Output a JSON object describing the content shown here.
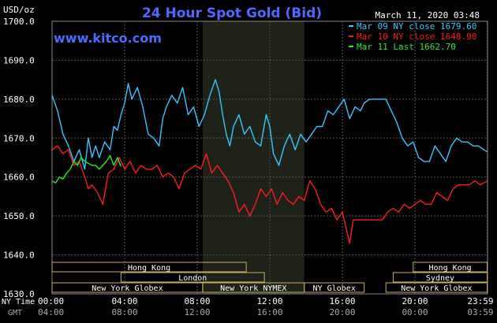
{
  "chart_data": {
    "type": "line",
    "title": "24 Hour Spot Gold (Bid)",
    "unit_label": "USD/oz",
    "date": "March 11, 2020 03:48",
    "watermark": "www.kitco.com",
    "ylim": [
      1630.0,
      1700.0
    ],
    "yticks": [
      "1700.0",
      "1690.0",
      "1680.0",
      "1670.0",
      "1660.0",
      "1650.0",
      "1640.0",
      "1630.0"
    ],
    "xlim": [
      0,
      24
    ],
    "ny_time_label": "NY Time",
    "gmt_label": "GMT",
    "ny_ticks": [
      "00:00",
      "04:00",
      "08:00",
      "12:00",
      "16:00",
      "20:00",
      "23:59"
    ],
    "gmt_ticks": [
      "04:00",
      "08:00",
      "12:00",
      "16:00",
      "20:00",
      "00:00",
      "03:59"
    ],
    "tick_hours": [
      0,
      4,
      8,
      12,
      16,
      20,
      23.98
    ],
    "shaded_hours": [
      8.3,
      13.9
    ],
    "colors": {
      "mar09": "#33c6ff",
      "mar10": "#ff1a1a",
      "mar11": "#22ee22",
      "title": "#5566ff",
      "grid": "#555555",
      "shade": "#1e2219",
      "market_box": "#c9b05a",
      "text": "#ffffff"
    },
    "series": [
      {
        "name": "Mar 09 NY close 1679.60",
        "color": "#33c6ff",
        "x": [
          0,
          0.3,
          0.6,
          0.9,
          1.2,
          1.5,
          1.8,
          2.0,
          2.2,
          2.4,
          2.6,
          2.9,
          3.2,
          3.4,
          3.6,
          3.8,
          4.0,
          4.2,
          4.4,
          4.7,
          5.0,
          5.3,
          5.6,
          5.9,
          6.1,
          6.3,
          6.6,
          6.9,
          7.2,
          7.5,
          7.8,
          8.1,
          8.4,
          8.7,
          9.0,
          9.2,
          9.4,
          9.6,
          9.8,
          10.0,
          10.3,
          10.6,
          10.9,
          11.2,
          11.5,
          11.8,
          12.0,
          12.2,
          12.5,
          12.8,
          13.1,
          13.4,
          13.7,
          14.0,
          14.3,
          14.6,
          14.9,
          15.2,
          15.5,
          15.8,
          16.1,
          16.4,
          16.7,
          17.0,
          17.2,
          17.5,
          17.8,
          18.1,
          18.4,
          18.7,
          19.0,
          19.3,
          19.6,
          19.9,
          20.2,
          20.5,
          20.8,
          21.1,
          21.4,
          21.7,
          22.0,
          22.3,
          22.6,
          22.9,
          23.2,
          23.5,
          23.8,
          23.98
        ],
        "y": [
          1681.0,
          1677.0,
          1671.0,
          1668.0,
          1664.0,
          1667.0,
          1662.0,
          1670.0,
          1665.0,
          1668.0,
          1665.0,
          1669.0,
          1667.0,
          1673.0,
          1672.0,
          1676.0,
          1679.0,
          1684.0,
          1680.0,
          1683.0,
          1678.0,
          1671.0,
          1670.0,
          1668.0,
          1675.0,
          1678.0,
          1681.0,
          1679.0,
          1683.0,
          1676.0,
          1678.0,
          1673.0,
          1676.0,
          1681.0,
          1685.0,
          1682.0,
          1676.0,
          1671.0,
          1668.0,
          1673.0,
          1676.0,
          1671.0,
          1673.0,
          1669.0,
          1668.0,
          1676.0,
          1673.0,
          1666.0,
          1663.0,
          1668.0,
          1671.0,
          1667.0,
          1671.0,
          1669.0,
          1671.0,
          1673.0,
          1673.0,
          1677.0,
          1676.0,
          1678.0,
          1680.0,
          1675.0,
          1678.0,
          1677.0,
          1679.0,
          1680.0,
          1680.0,
          1680.0,
          1680.0,
          1677.0,
          1674.0,
          1670.0,
          1668.0,
          1669.0,
          1665.0,
          1664.0,
          1664.0,
          1668.0,
          1666.0,
          1664.0,
          1668.0,
          1670.0,
          1669.0,
          1669.0,
          1668.0,
          1668.0,
          1667.0,
          1666.5
        ]
      },
      {
        "name": "Mar 10 NY close 1648.90",
        "color": "#ff1a1a",
        "x": [
          0,
          0.3,
          0.6,
          0.9,
          1.2,
          1.5,
          1.8,
          2.0,
          2.2,
          2.5,
          2.8,
          3.1,
          3.4,
          3.7,
          4.0,
          4.3,
          4.6,
          4.9,
          5.2,
          5.5,
          5.8,
          6.1,
          6.4,
          6.7,
          7.0,
          7.3,
          7.6,
          7.9,
          8.2,
          8.5,
          8.8,
          9.1,
          9.4,
          9.7,
          10.0,
          10.3,
          10.6,
          10.9,
          11.2,
          11.5,
          11.8,
          12.1,
          12.4,
          12.7,
          13.0,
          13.3,
          13.6,
          13.9,
          14.2,
          14.5,
          14.8,
          15.1,
          15.4,
          15.7,
          16.0,
          16.2,
          16.4,
          16.6,
          16.8,
          17.0,
          17.3,
          17.6,
          17.9,
          18.2,
          18.5,
          18.8,
          19.1,
          19.4,
          19.7,
          20.0,
          20.3,
          20.6,
          20.9,
          21.2,
          21.5,
          21.8,
          22.1,
          22.4,
          22.7,
          23.0,
          23.3,
          23.6,
          23.98
        ],
        "y": [
          1667.0,
          1668.0,
          1666.0,
          1667.0,
          1663.0,
          1664.0,
          1660.0,
          1657.0,
          1658.0,
          1656.0,
          1653.0,
          1661.0,
          1662.0,
          1665.0,
          1662.0,
          1664.0,
          1661.0,
          1663.0,
          1662.0,
          1662.0,
          1663.0,
          1660.0,
          1661.0,
          1660.0,
          1657.0,
          1661.0,
          1662.0,
          1663.0,
          1662.0,
          1666.0,
          1661.0,
          1663.0,
          1661.0,
          1659.0,
          1656.0,
          1651.0,
          1653.0,
          1650.0,
          1653.0,
          1657.0,
          1655.0,
          1657.0,
          1653.0,
          1656.0,
          1654.0,
          1653.0,
          1655.0,
          1654.0,
          1659.0,
          1657.0,
          1653.0,
          1651.0,
          1652.0,
          1649.0,
          1651.0,
          1647.0,
          1643.0,
          1649.0,
          1649.0,
          1649.0,
          1649.0,
          1649.0,
          1649.0,
          1649.0,
          1651.0,
          1652.0,
          1651.0,
          1653.0,
          1652.0,
          1653.0,
          1654.0,
          1653.0,
          1653.0,
          1656.0,
          1655.0,
          1654.0,
          1657.0,
          1658.0,
          1658.0,
          1658.0,
          1659.0,
          1658.0,
          1659.0
        ]
      },
      {
        "name": "Mar 11 Last 1662.70",
        "color": "#22ee22",
        "x": [
          0,
          0.2,
          0.4,
          0.6,
          0.8,
          1.0,
          1.2,
          1.4,
          1.6,
          1.8,
          2.0,
          2.2,
          2.4,
          2.6,
          2.8,
          3.0,
          3.2,
          3.4,
          3.6,
          3.8
        ],
        "y": [
          1659.0,
          1658.5,
          1660.0,
          1659.5,
          1661.0,
          1662.0,
          1664.0,
          1663.0,
          1665.0,
          1664.0,
          1663.5,
          1663.0,
          1663.0,
          1662.0,
          1663.0,
          1664.0,
          1665.5,
          1663.0,
          1665.0,
          1662.7
        ]
      }
    ],
    "legend": {
      "position": "top-right",
      "entries": [
        "Mar 09 NY close 1679.60",
        "Mar 10 NY close 1648.90",
        "Mar 11 Last 1662.70"
      ]
    },
    "markets": [
      {
        "name": "Hong Kong",
        "start": 0,
        "end": 10.7,
        "row": 0
      },
      {
        "name": "Hong Kong",
        "start": 19.9,
        "end": 23.98,
        "row": 0
      },
      {
        "name": "London",
        "start": 3.8,
        "end": 11.7,
        "row": 1
      },
      {
        "name": "Sydney",
        "start": 18.8,
        "end": 23.98,
        "row": 1
      },
      {
        "name": "New York Globex",
        "start": 0,
        "end": 8.3,
        "row": 2
      },
      {
        "name": "New York NYMEX",
        "start": 8.3,
        "end": 13.9,
        "row": 2
      },
      {
        "name": "NY Globex",
        "start": 13.9,
        "end": 17.2,
        "row": 2
      },
      {
        "name": "New York Globex",
        "start": 18.4,
        "end": 23.98,
        "row": 2
      }
    ],
    "grid": true
  }
}
